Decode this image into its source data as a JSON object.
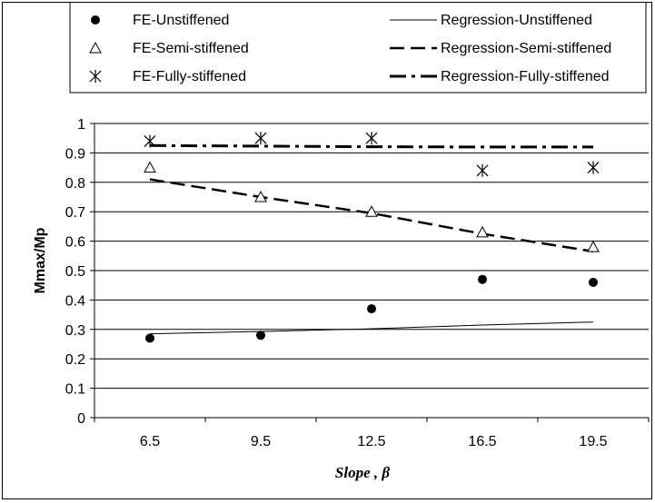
{
  "chart_data": {
    "type": "scatter",
    "categories": [
      "6.5",
      "9.5",
      "12.5",
      "16.5",
      "19.5"
    ],
    "xlabel": "Slope , β",
    "ylabel": "Mmax/Mp",
    "ylim": [
      0,
      1
    ],
    "ytick_labels": [
      "0",
      "0.1",
      "0.2",
      "0.3",
      "0.4",
      "0.5",
      "0.6",
      "0.7",
      "0.8",
      "0.9",
      "1"
    ],
    "grid": "horizontal",
    "legend_position": "top",
    "series": [
      {
        "name": "FE-Unstiffened",
        "kind": "points",
        "marker": "filled-circle",
        "values": [
          0.27,
          0.28,
          0.37,
          0.47,
          0.46
        ]
      },
      {
        "name": "FE-Semi-stiffened",
        "kind": "points",
        "marker": "open-triangle",
        "values": [
          0.85,
          0.75,
          0.7,
          0.63,
          0.58
        ]
      },
      {
        "name": "FE-Fully-stiffened",
        "kind": "points",
        "marker": "asterisk",
        "values": [
          0.94,
          0.95,
          0.95,
          0.84,
          0.85
        ]
      },
      {
        "name": "Regression-Unstiffened",
        "kind": "line",
        "style": "solid",
        "values": [
          0.285,
          0.293,
          0.302,
          0.315,
          0.325
        ]
      },
      {
        "name": "Regression-Semi-stiffened",
        "kind": "line",
        "style": "dashed",
        "values": [
          0.81,
          0.75,
          0.695,
          0.625,
          0.565
        ]
      },
      {
        "name": "Regression-Fully-stiffened",
        "kind": "line",
        "style": "dash-dot",
        "values": [
          0.925,
          0.923,
          0.921,
          0.92,
          0.92
        ]
      }
    ],
    "legend": {
      "items": [
        {
          "series": 0
        },
        {
          "series": 3
        },
        {
          "series": 1
        },
        {
          "series": 4
        },
        {
          "series": 2
        },
        {
          "series": 5
        }
      ]
    }
  }
}
